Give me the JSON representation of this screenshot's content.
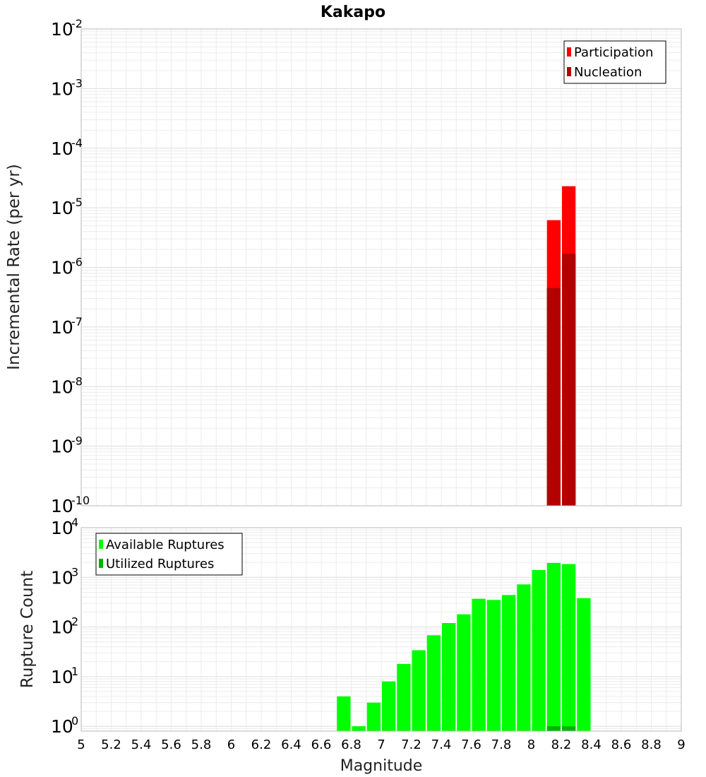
{
  "chart_data": [
    {
      "type": "bar",
      "title": "Kakapo",
      "xlabel": "Magnitude",
      "ylabel": "Incremental Rate (per yr)",
      "yscale": "log",
      "ylim": [
        1e-10,
        0.01
      ],
      "xlim": [
        5,
        9
      ],
      "bin_width": 0.1,
      "x_ticks": [
        "5",
        "5.2",
        "5.4",
        "5.6",
        "5.8",
        "6",
        "6.2",
        "6.4",
        "6.6",
        "6.8",
        "7",
        "7.2",
        "7.4",
        "7.6",
        "7.8",
        "8",
        "8.2",
        "8.4",
        "8.6",
        "8.8",
        "9"
      ],
      "y_ticks": [
        {
          "base": "10",
          "exp": "-10"
        },
        {
          "base": "10",
          "exp": "-9"
        },
        {
          "base": "10",
          "exp": "-8"
        },
        {
          "base": "10",
          "exp": "-7"
        },
        {
          "base": "10",
          "exp": "-6"
        },
        {
          "base": "10",
          "exp": "-5"
        },
        {
          "base": "10",
          "exp": "-4"
        },
        {
          "base": "10",
          "exp": "-3"
        },
        {
          "base": "10",
          "exp": "-2"
        }
      ],
      "legend_position": "top-right",
      "series": [
        {
          "name": "Participation",
          "color": "#ff0000",
          "x": [
            8.15,
            8.25
          ],
          "values": [
            6.2e-06,
            2.3e-05
          ]
        },
        {
          "name": "Nucleation",
          "color": "#b30000",
          "x": [
            8.15,
            8.25
          ],
          "values": [
            4.5e-07,
            1.7e-06
          ]
        }
      ]
    },
    {
      "type": "bar",
      "xlabel": "Magnitude",
      "ylabel": "Rupture Count",
      "yscale": "log",
      "ylim": [
        0.8,
        10000
      ],
      "xlim": [
        5,
        9
      ],
      "bin_width": 0.1,
      "y_ticks": [
        {
          "base": "10",
          "exp": "0"
        },
        {
          "base": "10",
          "exp": "1"
        },
        {
          "base": "10",
          "exp": "2"
        },
        {
          "base": "10",
          "exp": "3"
        },
        {
          "base": "10",
          "exp": "4"
        }
      ],
      "legend_position": "top-left",
      "series": [
        {
          "name": "Available Ruptures",
          "color": "#00ff00",
          "x": [
            6.75,
            6.85,
            6.95,
            7.05,
            7.15,
            7.25,
            7.35,
            7.45,
            7.55,
            7.65,
            7.75,
            7.85,
            7.95,
            8.05,
            8.15,
            8.25,
            8.35
          ],
          "values": [
            4,
            1,
            3,
            8,
            18,
            34,
            68,
            120,
            180,
            370,
            350,
            440,
            720,
            1400,
            1950,
            1850,
            380
          ]
        },
        {
          "name": "Utilized Ruptures",
          "color": "#00b300",
          "x": [
            8.15,
            8.25
          ],
          "values": [
            1,
            1
          ]
        }
      ]
    }
  ]
}
